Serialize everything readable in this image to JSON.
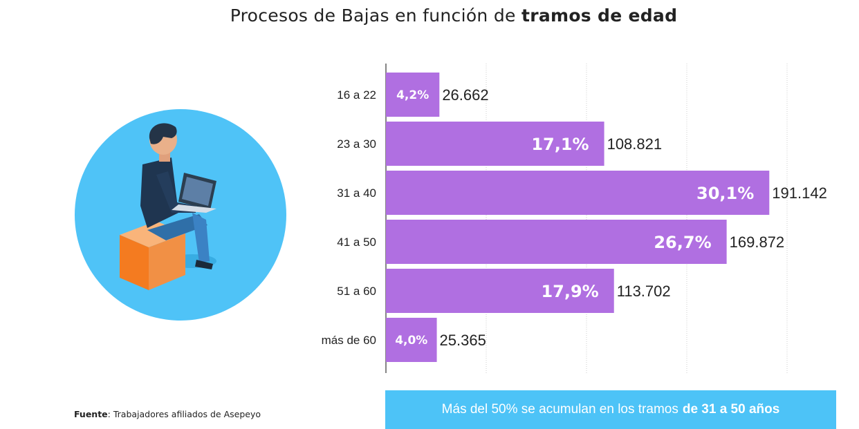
{
  "title": {
    "prefix": "Procesos de Bajas en función de",
    "bold": "tramos de edad"
  },
  "colors": {
    "bar": "#b06fe1",
    "banner": "#4dc3f7",
    "circle": "#4fc3f7",
    "grid": "#cccccc"
  },
  "chart_data": {
    "type": "bar",
    "orientation": "horizontal",
    "title": "Procesos de Bajas en función de tramos de edad",
    "categories": [
      "16 a 22",
      "23 a 30",
      "31 a 40",
      "41 a 50",
      "51 a 60",
      "más de 60"
    ],
    "values": [
      26662,
      108821,
      191142,
      169872,
      113702,
      25365
    ],
    "value_labels": [
      "26.662",
      "108.821",
      "191.142",
      "169.872",
      "113.702",
      "25.365"
    ],
    "percent_labels": [
      "4,2%",
      "17,1%",
      "30,1%",
      "26,7%",
      "17,9%",
      "4,0%"
    ],
    "xlim": [
      0,
      200000
    ],
    "grid": true,
    "legend": "none"
  },
  "source": {
    "label": "Fuente",
    "text": ": Trabajadores afiliados de Asepeyo"
  },
  "banner": {
    "text": "Más del 50% se acumulan en los tramos",
    "bold": "de 31 a 50 años"
  },
  "illustration": {
    "icon": "person-with-laptop-icon"
  }
}
